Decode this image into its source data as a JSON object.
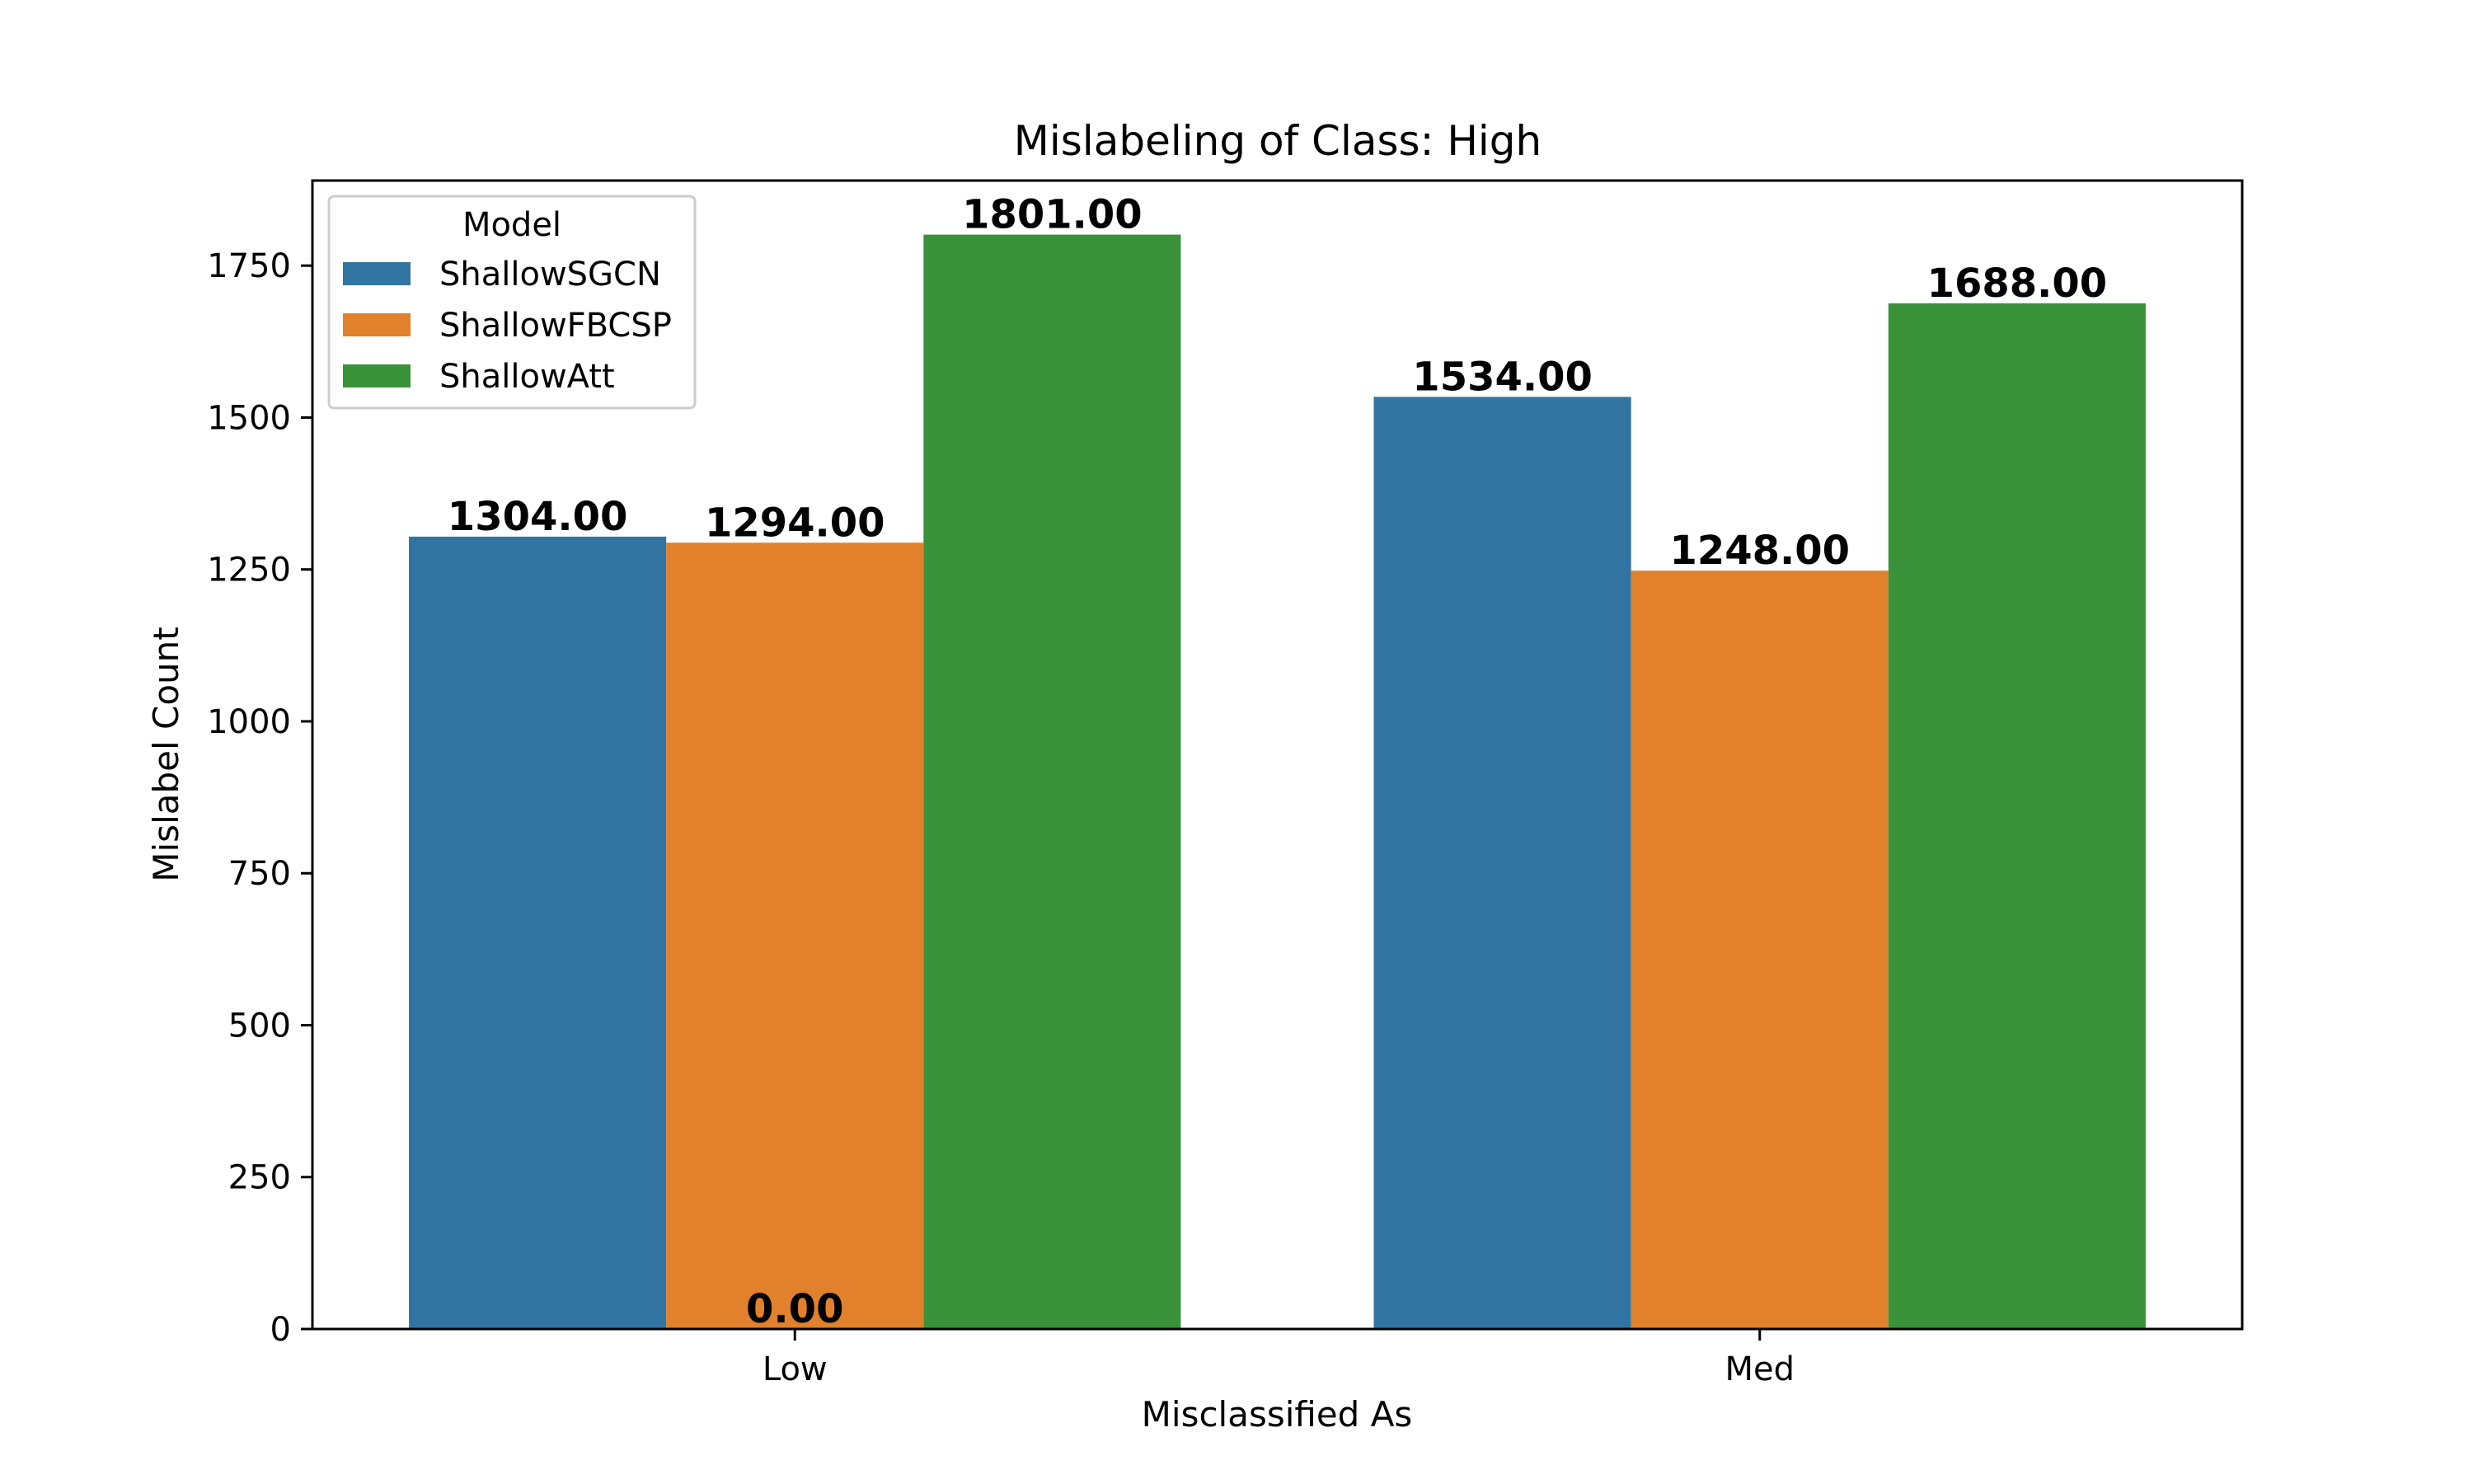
{
  "chart_data": {
    "type": "bar",
    "title": "Mislabeling of Class: High",
    "xlabel": "Misclassified As",
    "ylabel": "Mislabel Count",
    "categories": [
      "Low",
      "Med"
    ],
    "series": [
      {
        "name": "ShallowSGCN",
        "values": [
          1304,
          1534
        ],
        "color": "#3274a1"
      },
      {
        "name": "ShallowFBCSP",
        "values": [
          1294,
          1248
        ],
        "color": "#e1812c"
      },
      {
        "name": "ShallowAtt",
        "values": [
          1801,
          1688
        ],
        "color": "#3a923a"
      }
    ],
    "ylim": [
      0,
      1890
    ],
    "yticks": [
      0,
      250,
      500,
      750,
      1000,
      1250,
      1500,
      1750
    ],
    "bar_labels": [
      {
        "category": "Low",
        "series": "ShallowSGCN",
        "text": "1304.00"
      },
      {
        "category": "Low",
        "series": "ShallowFBCSP",
        "text": "1294.00"
      },
      {
        "category": "Low",
        "series": "ShallowAtt",
        "text": "1801.00"
      },
      {
        "category": "Med",
        "series": "ShallowSGCN",
        "text": "1534.00"
      },
      {
        "category": "Med",
        "series": "ShallowFBCSP",
        "text": "1248.00"
      },
      {
        "category": "Med",
        "series": "ShallowAtt",
        "text": "1688.00"
      },
      {
        "category": "Low",
        "series": "ShallowFBCSP",
        "text": "0.00",
        "at_baseline": true
      }
    ],
    "legend": {
      "title": "Model",
      "placement": "upper-left"
    },
    "grid": false
  }
}
